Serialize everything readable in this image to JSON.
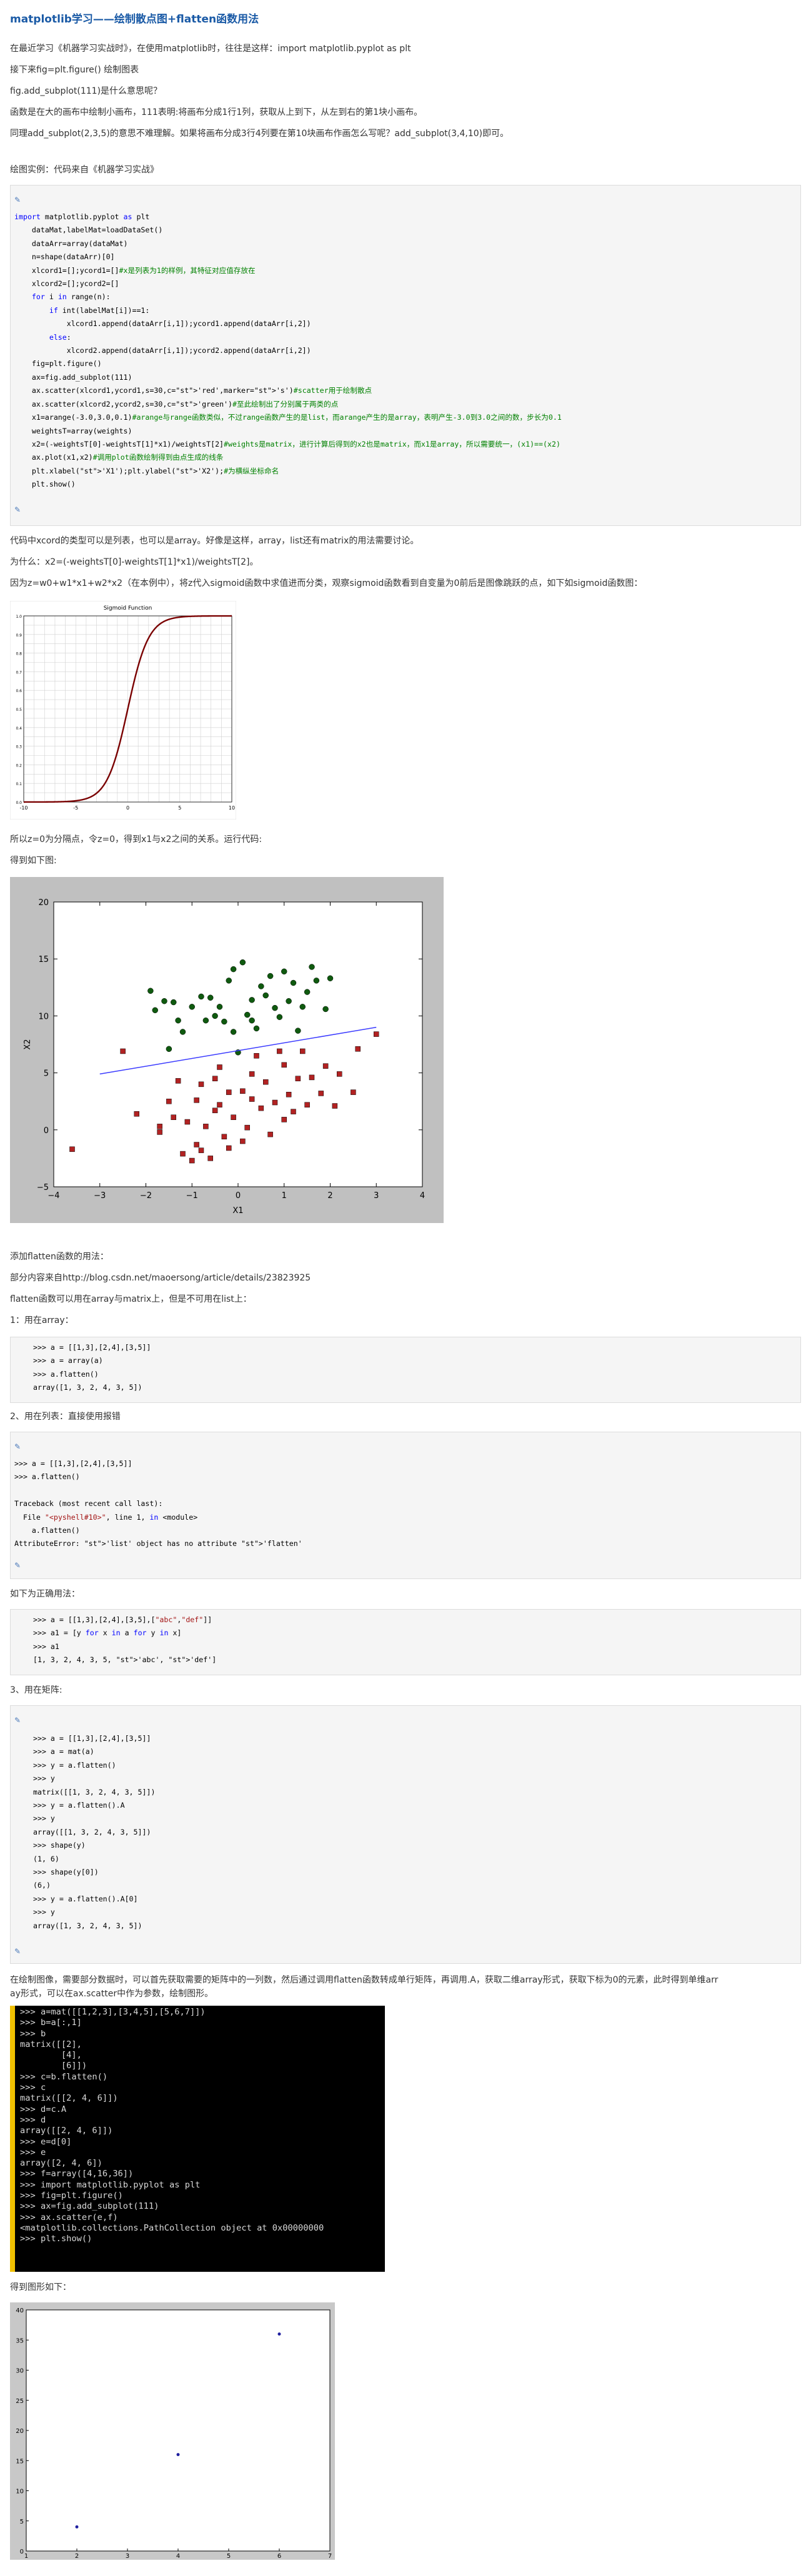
{
  "article": {
    "title": "matplotlib学习——绘制散点图+flatten函数用法",
    "intro_lines": [
      "在最近学习《机器学习实战时》，在使用matplotlib时，往往是这样：import matplotlib.pyplot as plt",
      "接下来fig=plt.figure() 绘制图表",
      "fig.add_subplot(111)是什么意思呢？",
      "函数是在大的画布中绘制小画布，111表明:将画布分成1行1列，获取从上到下，从左到右的第1块小画布。",
      "同理add_subplot(2,3,5)的意思不难理解。如果将画布分成3行4列要在第10块画布作画怎么写呢？add_subplot(3,4,10)即可。"
    ],
    "example_heading": "绘图实例：代码来自《机器学习实战》",
    "after_code_lines": [
      "代码中xcord的类型可以是列表，也可以是array。好像是这样，array，list还有matrix的用法需要讨论。",
      "为什么：x2=(-weightsT[0]-weightsT[1]*x1)/weightsT[2]。",
      "因为z=w0+w1*x1+w2*x2（在本例中），将z代入sigmoid函数中求值进而分类，观察sigmoid函数看到自变量为0前后是图像跳跃的点，如下如sigmoid函数图："
    ],
    "after_sigmoid_lines": [
      "所以z=0为分隔点，令z=0，得到x1与x2之间的关系。运行代码:",
      "得到如下图:"
    ],
    "flatten_lines": [
      "添加flatten函数的用法：",
      "部分内容来自http://blog.csdn.net/maoersong/article/details/23823925",
      "flatten函数可以用在array与matrix上，但是不可用在list上：",
      "1：用在array："
    ],
    "list_heading": "2、用在列表：直接使用报错",
    "correct_heading": "如下为正确用法：",
    "matrix_heading": "3、用在矩阵:",
    "scatter_para": [
      "在绘制图像，需要部分数据时，可以首先获取需要的矩阵中的一列数，然后通过调用flatten函数转成单行矩阵，再调用.A，获取二维array形式，获取下标为0的元素，此时得到单维arr",
      "ay形式，可以在ax.scatter中作为参数，绘制图形。"
    ],
    "final_heading": "得到图形如下："
  },
  "code1": {
    "lines": [
      "import matplotlib.pyplot as plt",
      "    dataMat,labelMat=loadDataSet()",
      "    dataArr=array(dataMat)",
      "    n=shape(dataArr)[0]",
      "    xlcord1=[];ycord1=[]#x是列表为1的样例，其特征对应值存放在",
      "    xlcord2=[];ycord2=[]",
      "    for i in range(n):",
      "        if int(labelMat[i])==1:",
      "            xlcord1.append(dataArr[i,1]);ycord1.append(dataArr[i,2])",
      "        else:",
      "            xlcord2.append(dataArr[i,1]);ycord2.append(dataArr[i,2])",
      "    fig=plt.figure()",
      "    ax=fig.add_subplot(111)",
      "    ax.scatter(xlcord1,ycord1,s=30,c='red',marker='s')#scatter用于绘制散点",
      "    ax.scatter(xlcord2,ycord2,s=30,c='green')#至此绘制出了分别属于两类的点",
      "    x1=arange(-3.0,3.0,0.1)#arange与range函数类似，不过range函数产生的是list，而arange产生的是array，表明产生-3.0到3.0之间的数，步长为0.1",
      "    weightsT=array(weights)",
      "    x2=(-weightsT[0]-weightsT[1]*x1)/weightsT[2]#weights是matrix，进行计算后得到的x2也是matrix，而x1是array，所以需要统一，(x1)==(x2)",
      "    ax.plot(x1,x2)#调用plot函数绘制得到由点生成的线条",
      "    plt.xlabel('X1');plt.ylabel('X2');#为横纵坐标命名",
      "    plt.show()"
    ]
  },
  "code_array": {
    "lines": [
      ">>> a = [[1,3],[2,4],[3,5]]",
      ">>> a = array(a)",
      ">>> a.flatten()",
      "array([1, 3, 2, 4, 3, 5])"
    ]
  },
  "code_list": {
    "lines": [
      ">>> a = [[1,3],[2,4],[3,5]]",
      ">>> a.flatten()",
      "",
      "Traceback (most recent call last):",
      "  File \"<pyshell#10>\", line 1, in <module>",
      "    a.flatten()",
      "AttributeError: 'list' object has no attribute 'flatten'"
    ]
  },
  "code_correct": {
    "lines": [
      ">>> a = [[1,3],[2,4],[3,5],[\"abc\",\"def\"]]",
      ">>> a1 = [y for x in a for y in x]",
      ">>> a1",
      "[1, 3, 2, 4, 3, 5, 'abc', 'def']"
    ]
  },
  "code_matrix": {
    "lines": [
      ">>> a = [[1,3],[2,4],[3,5]]",
      ">>> a = mat(a)",
      ">>> y = a.flatten()",
      ">>> y",
      "matrix([[1, 3, 2, 4, 3, 5]])",
      ">>> y = a.flatten().A",
      ">>> y",
      "array([[1, 3, 2, 4, 3, 5]])",
      ">>> shape(y)",
      "(1, 6)",
      ">>> shape(y[0])",
      "(6,)",
      ">>> y = a.flatten().A[0]",
      ">>> y",
      "array([1, 3, 2, 4, 3, 5])"
    ]
  },
  "console": {
    "lines": [
      ">>> a=mat([[1,2,3],[3,4,5],[5,6,7]])",
      ">>> b=a[:,1]",
      ">>> b",
      "matrix([[2],",
      "        [4],",
      "        [6]])",
      ">>> c=b.flatten()",
      ">>> c",
      "matrix([[2, 4, 6]])",
      ">>> d=c.A",
      ">>> d",
      "array([[2, 4, 6]])",
      ">>> e=d[0]",
      ">>> e",
      "array([2, 4, 6])",
      ">>> f=array([4,16,36])",
      ">>> import matplotlib.pyplot as plt",
      ">>> fig=plt.figure()",
      ">>> ax=fig.add_subplot(111)",
      ">>> ax.scatter(e,f)",
      "<matplotlib.collections.PathCollection object at 0x00000000",
      ">>> plt.show()"
    ]
  },
  "code_icon": "code-icon",
  "chart_data": [
    {
      "type": "line",
      "title": "Sigmoid Function",
      "x_ticks": [
        -10,
        -5,
        0,
        5,
        10
      ],
      "y_ticks": [
        "0.0",
        "0.1",
        "0.2",
        "0.3",
        "0.4",
        "0.5",
        "0.6",
        "0.7",
        "0.8",
        "0.9",
        "1.0"
      ],
      "xlim": [
        -10,
        10
      ],
      "ylim": [
        0,
        1
      ],
      "function": "sigmoid",
      "line_color": "#7a0000",
      "grid": true
    },
    {
      "type": "scatter",
      "xlabel": "X1",
      "ylabel": "X2",
      "xlim": [
        -4,
        4
      ],
      "ylim": [
        -5,
        20
      ],
      "x_ticks": [
        "−4",
        "−3",
        "−2",
        "−1",
        "0",
        "1",
        "2",
        "3",
        "4"
      ],
      "y_ticks": [
        "−5",
        "0",
        "5",
        "10",
        "15",
        "20"
      ],
      "series": [
        {
          "color": "#b22222",
          "marker": "square",
          "points": [
            [
              -3.6,
              -1.7
            ],
            [
              -2.5,
              6.9
            ],
            [
              -2.2,
              1.4
            ],
            [
              -1.7,
              0.3
            ],
            [
              -1.7,
              -0.2
            ],
            [
              -1.5,
              2.5
            ],
            [
              -1.4,
              1.1
            ],
            [
              -1.3,
              4.3
            ],
            [
              -1.2,
              -2.1
            ],
            [
              -1.1,
              0.7
            ],
            [
              -1.0,
              -2.7
            ],
            [
              -0.9,
              -1.3
            ],
            [
              -0.9,
              2.6
            ],
            [
              -0.8,
              4.0
            ],
            [
              -0.8,
              -1.8
            ],
            [
              -0.7,
              0.3
            ],
            [
              -0.6,
              -2.5
            ],
            [
              -0.5,
              1.7
            ],
            [
              -0.5,
              4.5
            ],
            [
              -0.4,
              2.2
            ],
            [
              -0.4,
              5.5
            ],
            [
              -0.3,
              -0.6
            ],
            [
              -0.2,
              3.3
            ],
            [
              -0.2,
              -1.6
            ],
            [
              -0.1,
              1.1
            ],
            [
              0.1,
              3.4
            ],
            [
              0.1,
              -1.0
            ],
            [
              0.2,
              0.2
            ],
            [
              0.3,
              4.9
            ],
            [
              0.3,
              2.7
            ],
            [
              0.4,
              6.5
            ],
            [
              0.5,
              1.9
            ],
            [
              0.6,
              4.2
            ],
            [
              0.7,
              -0.4
            ],
            [
              0.8,
              2.4
            ],
            [
              0.9,
              6.9
            ],
            [
              1.0,
              5.7
            ],
            [
              1.0,
              0.9
            ],
            [
              1.1,
              3.1
            ],
            [
              1.2,
              1.6
            ],
            [
              1.3,
              4.5
            ],
            [
              1.4,
              6.9
            ],
            [
              1.5,
              2.2
            ],
            [
              1.6,
              4.6
            ],
            [
              1.8,
              3.2
            ],
            [
              1.9,
              5.6
            ],
            [
              2.1,
              2.1
            ],
            [
              2.2,
              4.9
            ],
            [
              2.5,
              3.3
            ],
            [
              2.6,
              7.1
            ],
            [
              3.0,
              8.4
            ]
          ]
        },
        {
          "color": "#0f5a0f",
          "marker": "circle",
          "points": [
            [
              -1.9,
              12.2
            ],
            [
              -1.8,
              10.5
            ],
            [
              -1.6,
              11.3
            ],
            [
              -1.5,
              7.1
            ],
            [
              -1.4,
              11.2
            ],
            [
              -1.3,
              9.6
            ],
            [
              -1.2,
              8.6
            ],
            [
              -1.0,
              10.8
            ],
            [
              -0.8,
              11.7
            ],
            [
              -0.7,
              9.6
            ],
            [
              -0.6,
              11.6
            ],
            [
              -0.5,
              10.0
            ],
            [
              -0.4,
              10.8
            ],
            [
              -0.3,
              9.5
            ],
            [
              -0.2,
              13.1
            ],
            [
              -0.1,
              14.1
            ],
            [
              -0.1,
              8.6
            ],
            [
              0.0,
              6.8
            ],
            [
              0.1,
              14.7
            ],
            [
              0.2,
              10.1
            ],
            [
              0.3,
              11.4
            ],
            [
              0.3,
              9.6
            ],
            [
              0.4,
              8.9
            ],
            [
              0.5,
              12.6
            ],
            [
              0.6,
              11.8
            ],
            [
              0.7,
              13.5
            ],
            [
              0.8,
              10.7
            ],
            [
              0.9,
              9.9
            ],
            [
              1.0,
              13.9
            ],
            [
              1.1,
              11.3
            ],
            [
              1.2,
              12.9
            ],
            [
              1.3,
              8.7
            ],
            [
              1.4,
              10.8
            ],
            [
              1.5,
              12.1
            ],
            [
              1.6,
              14.3
            ],
            [
              1.7,
              13.1
            ],
            [
              1.9,
              10.6
            ],
            [
              2.0,
              13.3
            ]
          ]
        }
      ],
      "line": {
        "x": [
          -3.0,
          3.0
        ],
        "y": [
          4.9,
          9.0
        ],
        "color": "#3a3aff"
      }
    },
    {
      "type": "scatter",
      "xlim": [
        1,
        7
      ],
      "ylim": [
        0,
        40
      ],
      "x_ticks": [
        "1",
        "2",
        "3",
        "4",
        "5",
        "6",
        "7"
      ],
      "y_ticks": [
        "0",
        "5",
        "10",
        "15",
        "20",
        "25",
        "30",
        "35",
        "40"
      ],
      "series": [
        {
          "color": "#1f1f9f",
          "marker": "circle",
          "points": [
            [
              2,
              4
            ],
            [
              4,
              16
            ],
            [
              6,
              36
            ]
          ]
        }
      ]
    }
  ]
}
